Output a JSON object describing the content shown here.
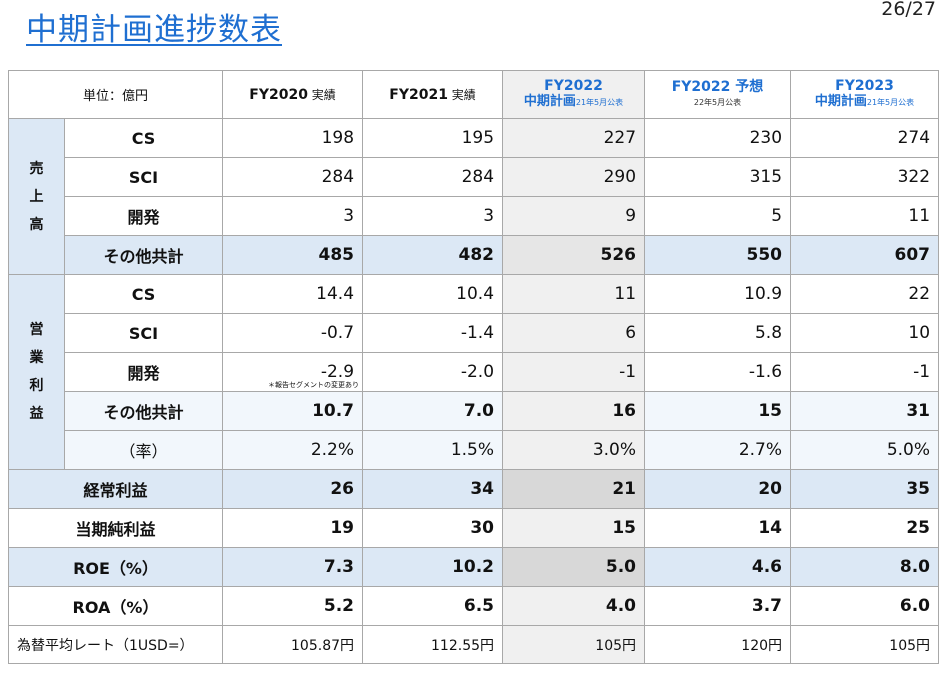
{
  "title": "中期計画進捗数表",
  "page": "26/27",
  "header": {
    "unit": "単位：億円",
    "cols": [
      {
        "main": "FY2020",
        "sub": " 実績"
      },
      {
        "main": "FY2021",
        "sub": " 実績"
      },
      {
        "main": "FY2022",
        "line2": "中期計画",
        "note": "21年5月公表"
      },
      {
        "main": "FY2022 予想",
        "note": "22年5月公表"
      },
      {
        "main": "FY2023",
        "line2": "中期計画",
        "note": "21年5月公表"
      }
    ]
  },
  "groups": {
    "sales": "売\n上\n高",
    "op": "営\n業\n利\n益"
  },
  "sales_rows": [
    {
      "label": "CS",
      "values": [
        "198",
        "195",
        "227",
        "230",
        "274"
      ]
    },
    {
      "label": "SCI",
      "values": [
        "284",
        "284",
        "290",
        "315",
        "322"
      ]
    },
    {
      "label": "開発",
      "values": [
        "3",
        "3",
        "9",
        "5",
        "11"
      ]
    },
    {
      "label": "その他共計",
      "values": [
        "485",
        "482",
        "526",
        "550",
        "607"
      ]
    }
  ],
  "op_rows": [
    {
      "label": "CS",
      "values": [
        "14.4",
        "10.4",
        "11",
        "10.9",
        "22"
      ]
    },
    {
      "label": "SCI",
      "values": [
        "-0.7",
        "-1.4",
        "6",
        "5.8",
        "10"
      ]
    },
    {
      "label": "開発",
      "values": [
        "-2.9",
        "-2.0",
        "-1",
        "-1.6",
        "-1"
      ]
    },
    {
      "label": "その他共計",
      "values": [
        "10.7",
        "7.0",
        "16",
        "15",
        "31"
      ]
    },
    {
      "label": "（率）",
      "values": [
        "2.2%",
        "1.5%",
        "3.0%",
        "2.7%",
        "5.0%"
      ]
    }
  ],
  "segment_note": "＊報告セグメントの変更あり",
  "summary_rows": [
    {
      "label": "経常利益",
      "values": [
        "26",
        "34",
        "21",
        "20",
        "35"
      ]
    },
    {
      "label": "当期純利益",
      "values": [
        "19",
        "30",
        "15",
        "14",
        "25"
      ]
    },
    {
      "label": "ROE（%）",
      "values": [
        "7.3",
        "10.2",
        "5.0",
        "4.6",
        "8.0"
      ]
    },
    {
      "label": "ROA（%）",
      "values": [
        "5.2",
        "6.5",
        "4.0",
        "3.7",
        "6.0"
      ]
    }
  ],
  "fx_row": {
    "label": "為替平均レート（1USD=）",
    "values": [
      "105.87円",
      "112.55円",
      "105円",
      "120円",
      "105円"
    ]
  }
}
